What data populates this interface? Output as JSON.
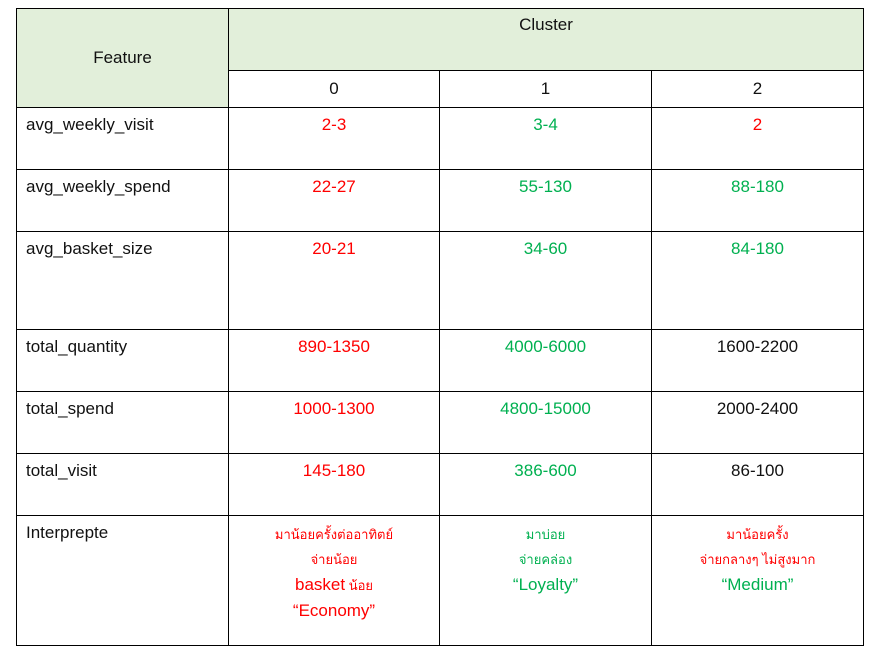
{
  "header": {
    "feature": "Feature",
    "cluster": "Cluster",
    "indices": [
      "0",
      "1",
      "2"
    ]
  },
  "rows": [
    {
      "feature": "avg_weekly_visit",
      "values": [
        "2-3",
        "3-4",
        "2"
      ],
      "colors": [
        "#ff0000",
        "#00b050",
        "#ff0000"
      ]
    },
    {
      "feature": "avg_weekly_spend",
      "values": [
        "22-27",
        "55-130",
        "88-180"
      ],
      "colors": [
        "#ff0000",
        "#00b050",
        "#00b050"
      ]
    },
    {
      "feature": "avg_basket_size",
      "values": [
        "20-21",
        "34-60",
        "84-180"
      ],
      "colors": [
        "#ff0000",
        "#00b050",
        "#00b050"
      ]
    },
    {
      "feature": "total_quantity",
      "values": [
        "890-1350",
        "4000-6000",
        "1600-2200"
      ],
      "colors": [
        "#ff0000",
        "#00b050",
        "#111111"
      ]
    },
    {
      "feature": "total_spend",
      "values": [
        "1000-1300",
        "4800-15000",
        "2000-2400"
      ],
      "colors": [
        "#ff0000",
        "#00b050",
        "#111111"
      ]
    },
    {
      "feature": "total_visit",
      "values": [
        "145-180",
        "386-600",
        "86-100"
      ],
      "colors": [
        "#ff0000",
        "#00b050",
        "#111111"
      ]
    }
  ],
  "interpretation": {
    "label": "Interprepte",
    "c0": {
      "line1": "มาน้อยครั้งต่ออาทิตย์",
      "line2": "จ่ายน้อย",
      "line3_a": "basket",
      "line3_b": " น้อย",
      "line4": "“Economy”"
    },
    "c1": {
      "line1": "มาบ่อย",
      "line2": "จ่ายคล่อง",
      "line3": "“Loyalty”"
    },
    "c2": {
      "line1": "มาน้อยครั้ง",
      "line2": "จ่ายกลางๆ ไม่สูงมาก",
      "line3": "“Medium”"
    }
  },
  "colors": {
    "header_bg": "#e2efda",
    "bad": "#ff0000",
    "good": "#00b050",
    "neutral": "#111111"
  }
}
